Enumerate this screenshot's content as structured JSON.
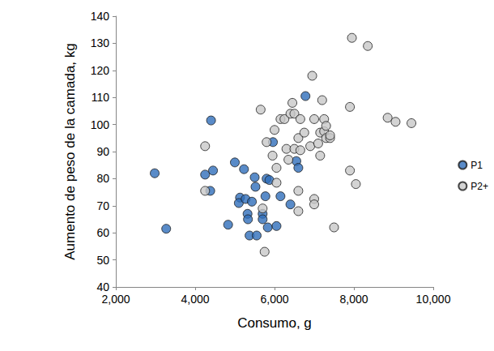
{
  "chart_data": {
    "type": "scatter",
    "x_label": "Consumo, g",
    "y_label": "Aumento de peso de la camada, kg",
    "xlim": [
      2000,
      10000
    ],
    "xticks": [
      2000,
      4000,
      6000,
      8000,
      10000
    ],
    "ylim": [
      40,
      140
    ],
    "yticks": [
      40,
      50,
      60,
      70,
      80,
      90,
      100,
      110,
      120,
      130,
      140
    ],
    "grid": false,
    "legend": "right",
    "marker": "circle",
    "series": [
      {
        "name": "P1",
        "color": "#2f6eba",
        "x": [
          2980,
          3270,
          4250,
          4380,
          4400,
          4450,
          4830,
          5000,
          5130,
          5100,
          5230,
          5270,
          5320,
          5330,
          5370,
          5430,
          5500,
          5520,
          5550,
          5700,
          5700,
          5770,
          5800,
          5830,
          5870,
          5960,
          6050,
          6150,
          6400,
          6550,
          6600,
          6780
        ],
        "values": [
          82,
          61.5,
          81.5,
          75.5,
          101.5,
          83,
          63,
          86,
          73,
          71,
          83.5,
          72.5,
          67,
          65,
          59,
          71.5,
          80.5,
          77,
          59,
          67,
          65,
          73.5,
          80,
          62,
          79.5,
          93.5,
          62.5,
          73.5,
          70.5,
          86.5,
          84,
          110.5
        ]
      },
      {
        "name": "P2+",
        "color": "#c8c8c8",
        "x": [
          4250,
          4250,
          5650,
          5750,
          5800,
          5700,
          5950,
          6000,
          6050,
          6050,
          6150,
          6250,
          6300,
          6350,
          6400,
          6450,
          6500,
          6500,
          6600,
          6650,
          6600,
          6600,
          6650,
          6750,
          6900,
          6950,
          7000,
          7000,
          7000,
          7100,
          7150,
          7150,
          7200,
          7250,
          7250,
          7300,
          7300,
          7400,
          7400,
          7500,
          7900,
          7900,
          7950,
          8050,
          8350,
          8850,
          9050,
          9450
        ],
        "values": [
          92,
          75.5,
          105.5,
          53,
          93.5,
          69,
          88.5,
          98,
          84,
          78.5,
          102,
          102,
          91,
          87,
          104,
          108,
          104,
          91,
          95,
          102,
          68,
          75.5,
          90.5,
          97,
          92,
          118,
          102,
          72.5,
          70.5,
          93,
          88.5,
          97,
          109,
          102,
          97.5,
          95,
          99.5,
          95,
          96,
          62,
          106.5,
          83,
          132,
          78,
          129,
          102.5,
          101,
          100.5
        ]
      }
    ]
  }
}
